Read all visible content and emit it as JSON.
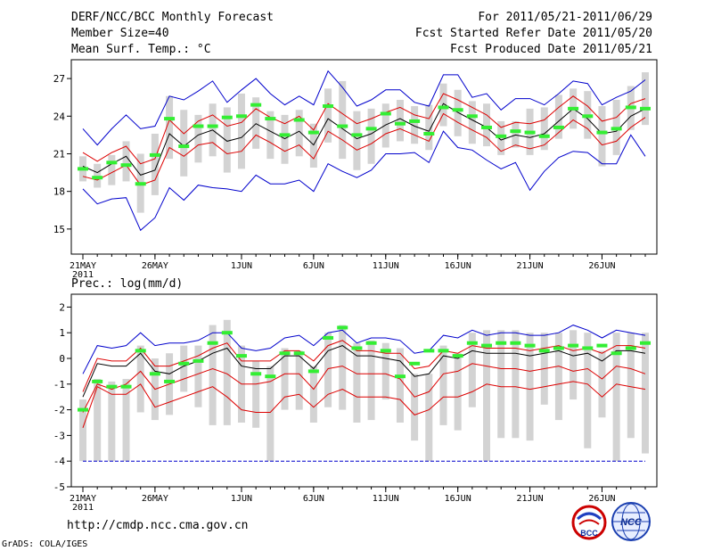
{
  "header": {
    "title": "DERF/NCC/BCC Monthly Forecast",
    "member_size": "Member Size=40",
    "variable_temp": "Mean Surf. Temp.: °C",
    "for_range": "For 2011/05/21-2011/06/29",
    "fcst_started": "Fcst Started Refer Date 2011/05/20",
    "fcst_produced": "Fcst Produced Date 2011/05/21"
  },
  "footer": {
    "url": "http://cmdp.ncc.cma.gov.cn",
    "grads": "GrADS: COLA/IGES",
    "logo_bcc": "BCC",
    "logo_ncc": "NCC"
  },
  "colors": {
    "box": "#d3d3d3",
    "green": "#33ee33",
    "mean": "#000000",
    "pct": "#dd0000",
    "envelope": "#0000cc",
    "frame": "#000000"
  },
  "chart_data": [
    {
      "type": "box-ensemble",
      "title": "Mean Surf. Temp.: °C",
      "ylim": [
        13,
        28.5
      ],
      "yticks": [
        15,
        18,
        21,
        24,
        27
      ],
      "x_day_range": [
        1,
        40
      ],
      "xticks": [
        {
          "day": 1,
          "label": "21MAY",
          "sub": "2011"
        },
        {
          "day": 6,
          "label": "26MAY"
        },
        {
          "day": 12,
          "label": "1JUN"
        },
        {
          "day": 17,
          "label": "6JUN"
        },
        {
          "day": 22,
          "label": "11JUN"
        },
        {
          "day": 27,
          "label": "16JUN"
        },
        {
          "day": 32,
          "label": "21JUN"
        },
        {
          "day": 37,
          "label": "26JUN"
        }
      ],
      "mean": [
        20.0,
        19.5,
        20.2,
        20.8,
        19.3,
        19.7,
        22.6,
        21.6,
        22.5,
        22.9,
        22.0,
        22.3,
        23.4,
        22.8,
        22.2,
        22.8,
        21.7,
        23.8,
        23.0,
        22.2,
        22.6,
        23.3,
        23.8,
        23.2,
        22.8,
        25.0,
        24.3,
        23.7,
        23.1,
        22.1,
        22.5,
        22.3,
        22.6,
        23.6,
        24.6,
        23.8,
        22.6,
        22.8,
        24.0,
        24.6
      ],
      "pct_upper": [
        21.1,
        20.4,
        21.1,
        21.6,
        20.2,
        20.6,
        23.7,
        22.6,
        23.6,
        24.1,
        23.2,
        23.5,
        24.6,
        23.9,
        23.4,
        24.0,
        22.9,
        25.0,
        24.2,
        23.4,
        23.8,
        24.3,
        24.7,
        24.1,
        23.8,
        25.8,
        25.3,
        24.7,
        24.1,
        23.1,
        23.5,
        23.4,
        23.7,
        24.7,
        25.6,
        24.8,
        23.6,
        23.9,
        25.0,
        25.4
      ],
      "pct_lower": [
        19.2,
        18.9,
        19.5,
        20.1,
        18.5,
        18.9,
        21.5,
        20.8,
        21.7,
        21.9,
        21.0,
        21.2,
        22.5,
        21.9,
        21.2,
        21.7,
        20.6,
        22.8,
        22.1,
        21.3,
        21.8,
        22.6,
        23.0,
        22.5,
        22.0,
        24.2,
        23.5,
        22.9,
        22.3,
        21.2,
        21.7,
        21.4,
        21.7,
        22.7,
        23.7,
        23.0,
        21.7,
        22.0,
        23.1,
        23.9
      ],
      "env_upper": [
        23.0,
        21.7,
        23.0,
        24.1,
        23.0,
        23.2,
        25.6,
        25.3,
        26.0,
        26.8,
        25.1,
        26.1,
        27.0,
        25.8,
        24.9,
        25.6,
        24.9,
        27.6,
        26.3,
        24.8,
        25.3,
        26.1,
        26.1,
        25.1,
        24.8,
        27.3,
        27.3,
        25.5,
        25.8,
        24.5,
        25.4,
        25.4,
        24.9,
        25.8,
        26.8,
        26.6,
        24.9,
        25.5,
        26.0,
        26.9
      ],
      "env_lower": [
        18.2,
        17.0,
        17.4,
        17.5,
        14.9,
        15.9,
        18.3,
        17.3,
        18.5,
        18.3,
        18.2,
        18.0,
        19.3,
        18.6,
        18.6,
        18.9,
        18.0,
        20.2,
        19.6,
        19.1,
        19.7,
        21.0,
        21.0,
        21.1,
        20.3,
        22.8,
        21.5,
        21.3,
        20.5,
        19.8,
        20.3,
        18.1,
        19.6,
        20.7,
        21.2,
        21.1,
        20.2,
        20.2,
        22.5,
        20.8
      ],
      "box_high": [
        20.8,
        20.2,
        20.9,
        22.0,
        21.0,
        22.6,
        25.6,
        24.5,
        24.1,
        25.0,
        24.7,
        25.8,
        25.5,
        24.4,
        24.1,
        24.5,
        23.4,
        26.2,
        26.8,
        24.4,
        24.6,
        25.0,
        25.3,
        24.8,
        24.9,
        26.6,
        26.1,
        25.2,
        25.0,
        23.6,
        23.6,
        24.6,
        24.7,
        25.7,
        26.2,
        26.0,
        24.8,
        25.3,
        26.4,
        27.5
      ],
      "box_low": [
        18.8,
        18.3,
        18.5,
        18.8,
        16.3,
        17.7,
        20.6,
        19.2,
        20.3,
        20.8,
        19.5,
        19.8,
        21.4,
        20.6,
        20.2,
        20.8,
        19.9,
        21.9,
        20.6,
        19.7,
        20.2,
        21.5,
        22.0,
        21.8,
        21.3,
        23.2,
        22.4,
        21.8,
        21.6,
        20.9,
        21.5,
        20.9,
        21.3,
        22.2,
        23.0,
        22.2,
        20.0,
        20.9,
        22.9,
        23.3
      ],
      "green": [
        19.8,
        19.1,
        20.3,
        20.1,
        18.6,
        20.9,
        23.8,
        21.6,
        23.2,
        23.2,
        23.9,
        24.0,
        24.9,
        23.8,
        22.5,
        23.7,
        22.7,
        24.8,
        23.2,
        22.5,
        23.0,
        24.2,
        23.4,
        23.6,
        22.6,
        24.7,
        24.5,
        24.0,
        23.1,
        22.4,
        22.8,
        22.7,
        22.4,
        23.1,
        24.6,
        24.0,
        22.7,
        23.0,
        24.7,
        24.6
      ]
    },
    {
      "type": "box-ensemble",
      "title": "Prec.: log(mm/d)",
      "ylim": [
        -5,
        2.5
      ],
      "yticks": [
        -5,
        -4,
        -3,
        -2,
        -1,
        0,
        1,
        2
      ],
      "x_day_range": [
        1,
        40
      ],
      "xticks": [
        {
          "day": 1,
          "label": "21MAY",
          "sub": "2011"
        },
        {
          "day": 6,
          "label": "26MAY"
        },
        {
          "day": 12,
          "label": "1JUN"
        },
        {
          "day": 17,
          "label": "6JUN"
        },
        {
          "day": 22,
          "label": "11JUN"
        },
        {
          "day": 27,
          "label": "16JUN"
        },
        {
          "day": 32,
          "label": "21JUN"
        },
        {
          "day": 37,
          "label": "26JUN"
        }
      ],
      "mean": [
        -1.5,
        -0.2,
        -0.3,
        -0.3,
        0.2,
        -0.5,
        -0.6,
        -0.3,
        -0.1,
        0.2,
        0.4,
        -0.3,
        -0.4,
        -0.4,
        0.1,
        0.1,
        -0.4,
        0.3,
        0.5,
        0.1,
        0.1,
        0.0,
        -0.1,
        -0.7,
        -0.6,
        0.1,
        0.0,
        0.3,
        0.2,
        0.2,
        0.2,
        0.1,
        0.2,
        0.3,
        0.1,
        0.2,
        -0.1,
        0.3,
        0.3,
        0.2
      ],
      "pct_upper": [
        -1.3,
        0.0,
        -0.1,
        -0.1,
        0.4,
        -0.3,
        -0.3,
        -0.1,
        0.1,
        0.4,
        0.6,
        -0.1,
        -0.1,
        -0.1,
        0.3,
        0.3,
        -0.1,
        0.5,
        0.7,
        0.3,
        0.3,
        0.2,
        0.2,
        -0.4,
        -0.3,
        0.3,
        0.2,
        0.5,
        0.4,
        0.4,
        0.4,
        0.3,
        0.4,
        0.5,
        0.3,
        0.4,
        0.2,
        0.5,
        0.5,
        0.4
      ],
      "pct_lower": [
        -2.1,
        -1.0,
        -1.2,
        -1.0,
        -0.5,
        -1.2,
        -1.0,
        -0.8,
        -0.6,
        -0.4,
        -0.6,
        -1.0,
        -1.0,
        -0.9,
        -0.6,
        -0.6,
        -1.2,
        -0.4,
        -0.3,
        -0.6,
        -0.6,
        -0.6,
        -0.8,
        -1.5,
        -1.3,
        -0.6,
        -0.5,
        -0.2,
        -0.3,
        -0.4,
        -0.4,
        -0.5,
        -0.4,
        -0.3,
        -0.5,
        -0.4,
        -0.8,
        -0.3,
        -0.4,
        -0.6
      ],
      "pct_lowest": [
        -2.7,
        -1.1,
        -1.4,
        -1.4,
        -1.0,
        -1.9,
        -1.7,
        -1.5,
        -1.3,
        -1.1,
        -1.5,
        -2.0,
        -2.1,
        -2.1,
        -1.5,
        -1.4,
        -1.9,
        -1.4,
        -1.2,
        -1.5,
        -1.5,
        -1.5,
        -1.6,
        -2.2,
        -2.0,
        -1.5,
        -1.5,
        -1.3,
        -1.0,
        -1.1,
        -1.1,
        -1.2,
        -1.1,
        -1.0,
        -0.9,
        -1.0,
        -1.5,
        -1.0,
        -1.1,
        -1.2
      ],
      "env_upper": [
        -0.6,
        0.5,
        0.4,
        0.5,
        1.0,
        0.5,
        0.6,
        0.6,
        0.7,
        1.0,
        1.0,
        0.4,
        0.3,
        0.4,
        0.8,
        0.9,
        0.5,
        1.0,
        1.1,
        0.6,
        0.8,
        0.8,
        0.7,
        0.2,
        0.3,
        0.9,
        0.8,
        1.1,
        0.9,
        1.0,
        1.0,
        0.9,
        0.9,
        1.0,
        1.3,
        1.1,
        0.8,
        1.1,
        1.0,
        0.9
      ],
      "env_lower": [
        -4,
        -4,
        -4,
        -4,
        -4,
        -4,
        -4,
        -4,
        -4,
        -4,
        -4,
        -4,
        -4,
        -4,
        -4,
        -4,
        -4,
        -4,
        -4,
        -4,
        -4,
        -4,
        -4,
        -4,
        -4,
        -4,
        -4,
        -4,
        -4,
        -4,
        -4,
        -4,
        -4,
        -4,
        -4,
        -4,
        -4,
        -4,
        -4,
        -4
      ],
      "box_high": [
        -1.6,
        -0.8,
        -0.9,
        -0.8,
        0.5,
        0.0,
        0.2,
        0.5,
        0.5,
        1.3,
        1.5,
        0.5,
        -0.1,
        -0.3,
        0.4,
        0.3,
        -0.3,
        1.0,
        1.3,
        0.6,
        0.7,
        0.6,
        0.4,
        -0.6,
        -0.6,
        0.5,
        0.2,
        1.0,
        1.1,
        1.1,
        1.1,
        1.0,
        1.0,
        1.0,
        1.1,
        1.0,
        0.3,
        1.0,
        1.0,
        1.0
      ],
      "box_low": [
        -4.0,
        -4.0,
        -4.0,
        -4.0,
        -2.1,
        -2.4,
        -2.2,
        -1.3,
        -1.9,
        -2.6,
        -2.6,
        -2.5,
        -2.7,
        -4.0,
        -2.0,
        -2.0,
        -2.5,
        -1.9,
        -2.0,
        -2.5,
        -2.4,
        -1.6,
        -2.5,
        -3.2,
        -4.0,
        -2.6,
        -2.8,
        -1.9,
        -4.0,
        -3.1,
        -3.1,
        -3.2,
        -1.8,
        -2.4,
        -1.6,
        -3.5,
        -2.3,
        -4.0,
        -3.1,
        -3.7
      ],
      "green": [
        -2.0,
        -0.9,
        -1.1,
        -1.1,
        0.3,
        -0.6,
        -0.9,
        -0.2,
        -0.1,
        0.6,
        1.0,
        0.1,
        -0.6,
        -0.7,
        0.2,
        0.2,
        -0.5,
        0.8,
        1.2,
        0.4,
        0.6,
        0.3,
        -0.7,
        -0.2,
        0.3,
        0.3,
        0.1,
        0.6,
        0.5,
        0.6,
        0.6,
        0.5,
        0.3,
        0.4,
        0.5,
        0.4,
        0.5,
        0.2,
        0.4,
        0.6
      ]
    }
  ]
}
